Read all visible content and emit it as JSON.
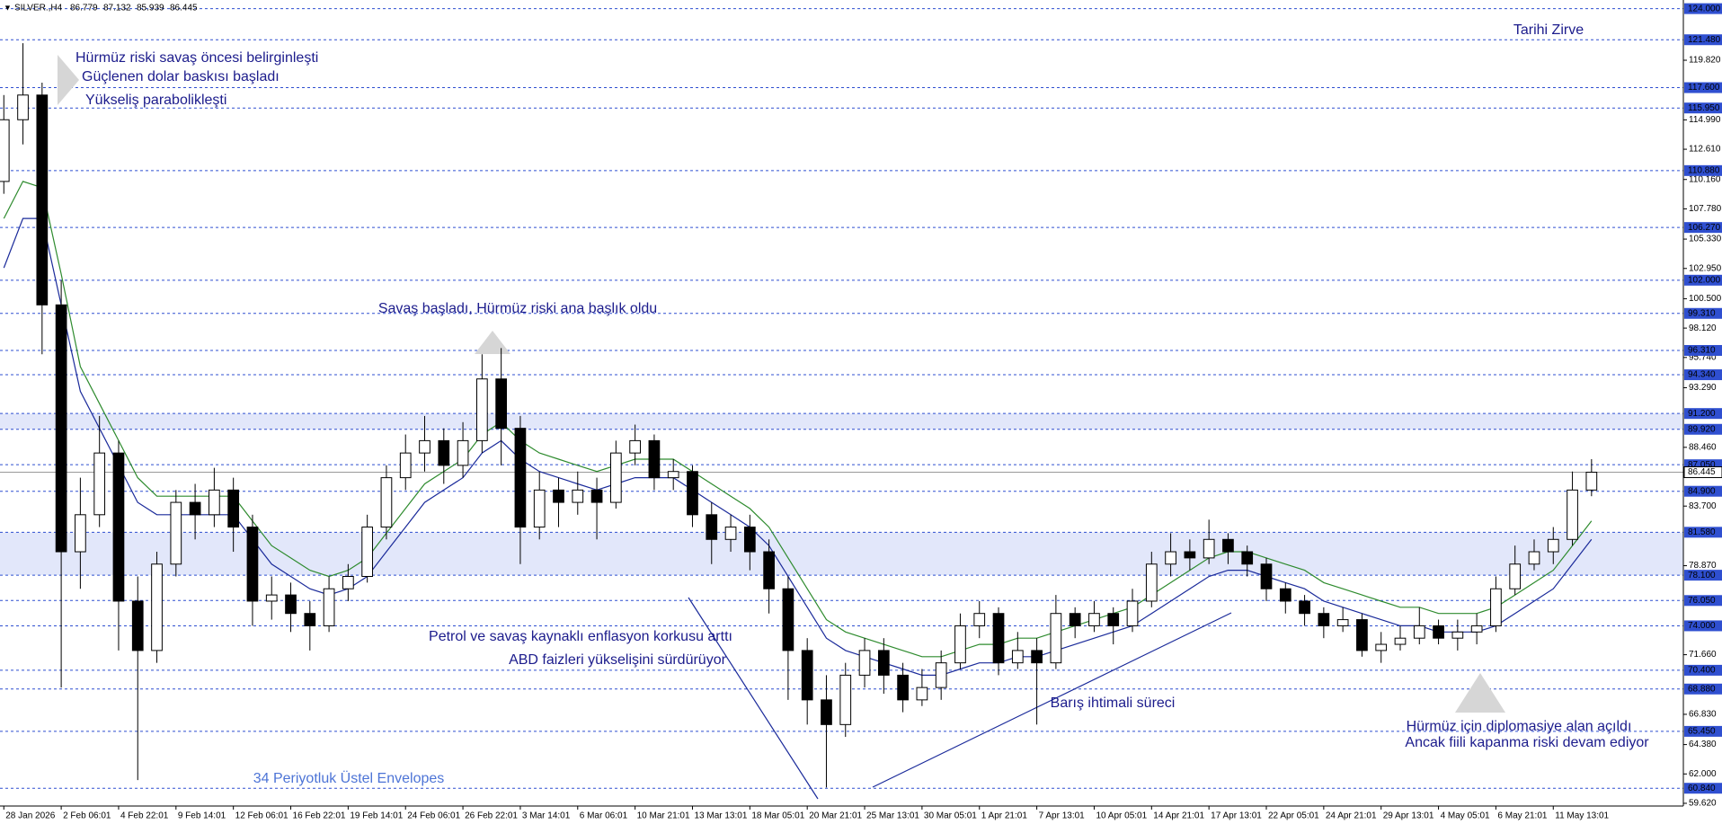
{
  "chart_data": {
    "type": "candlestick",
    "symbol": "SILVER.,H4",
    "header_values": [
      86.779,
      87.132,
      85.939,
      86.445
    ],
    "open": [
      110,
      115,
      117,
      100,
      80,
      83,
      88,
      76,
      72,
      79,
      84,
      83,
      85,
      82,
      76,
      76.5,
      75,
      74,
      77,
      78,
      82,
      86,
      88,
      89,
      87,
      89,
      94,
      90,
      82,
      85,
      84,
      85,
      84,
      88,
      89,
      86,
      86.5,
      83,
      81,
      82,
      80,
      77,
      72,
      68,
      66,
      70,
      72,
      70,
      68,
      69,
      71,
      74,
      75,
      71,
      72,
      71,
      75,
      74,
      75,
      74,
      76,
      79,
      80,
      79.5,
      81,
      80,
      79,
      77,
      76,
      75,
      74,
      74.5,
      72,
      72.5,
      73,
      74,
      73,
      73.5,
      74,
      77,
      79,
      80,
      81,
      85
    ],
    "high": [
      117,
      121.2,
      118,
      102,
      86,
      91,
      89,
      78,
      80,
      85,
      85.5,
      86.8,
      86,
      83,
      78,
      77.5,
      76,
      78,
      79,
      83,
      87,
      89.5,
      91,
      90,
      90.5,
      96,
      96.5,
      91,
      86.5,
      86,
      86.5,
      86,
      89,
      90.3,
      89.5,
      87.5,
      87,
      84,
      83,
      83,
      81,
      78,
      73,
      70,
      71,
      73,
      73,
      71,
      70.5,
      72,
      75,
      76,
      75.5,
      73.5,
      73,
      76.5,
      75.5,
      76,
      75.5,
      77,
      80,
      81.5,
      81,
      82.6,
      81.5,
      80.5,
      79.5,
      77.5,
      76.5,
      75.5,
      75.5,
      75,
      73.5,
      74,
      75.5,
      74.5,
      74.5,
      75,
      78,
      80.5,
      81,
      82,
      86.5,
      87.5
    ],
    "low": [
      109,
      113,
      96,
      69,
      77,
      82,
      72,
      61.5,
      71,
      78,
      81,
      82,
      80,
      74,
      74.5,
      73.5,
      72,
      73.5,
      76,
      77.5,
      81,
      85,
      86.5,
      85.5,
      86,
      88,
      87,
      79,
      81,
      82,
      83,
      81,
      83.5,
      87,
      85,
      85,
      82,
      79,
      80,
      78.5,
      75,
      68,
      66,
      60.9,
      65,
      69,
      68.5,
      67,
      67.5,
      68,
      70.5,
      73,
      70,
      70.5,
      66,
      70.5,
      73,
      73.5,
      72.5,
      73.5,
      75.5,
      78,
      78.5,
      79,
      79,
      78,
      76,
      75,
      74,
      73,
      73.5,
      71.5,
      71,
      72,
      72.5,
      72.5,
      72,
      72.5,
      73.5,
      76.5,
      78.5,
      79,
      80.5,
      84.5
    ],
    "close": [
      115,
      117,
      100,
      80,
      83,
      88,
      76,
      72,
      79,
      84,
      83,
      85,
      82,
      76,
      76.5,
      75,
      74,
      77,
      78,
      82,
      86,
      88,
      89,
      87,
      89,
      94,
      90,
      82,
      85,
      84,
      85,
      84,
      88,
      89,
      86,
      86.5,
      83,
      81,
      82,
      80,
      77,
      72,
      68,
      66,
      70,
      72,
      70,
      68,
      69,
      71,
      74,
      75,
      71,
      72,
      71,
      75,
      74,
      75,
      74,
      76,
      79,
      80,
      79.5,
      81,
      80,
      79,
      77,
      76,
      75,
      74,
      74.5,
      72,
      72.5,
      73,
      74,
      73,
      73.5,
      74,
      77,
      79,
      80,
      81,
      85,
      86.445
    ],
    "envelopes": [
      {
        "color": "#2e8b2e",
        "values": [
          107,
          110,
          109.5,
          102.5,
          95,
          92,
          89,
          86,
          84.5,
          84.5,
          84.5,
          84.5,
          84.5,
          82.5,
          80.5,
          79.5,
          78.5,
          78,
          78.5,
          79.5,
          81.5,
          83.5,
          85.5,
          86.5,
          87.5,
          89.5,
          90.5,
          89,
          88,
          87.5,
          87,
          86.5,
          87,
          87.5,
          87.5,
          87.5,
          86.5,
          85.5,
          84.5,
          83.5,
          82,
          79.5,
          77,
          74.5,
          73.5,
          73,
          72.5,
          72,
          71.5,
          71.5,
          72,
          72.5,
          72.5,
          73,
          73,
          73.5,
          74,
          74.5,
          75,
          75.5,
          76.5,
          77.5,
          78.5,
          79.5,
          80,
          80,
          79.5,
          79,
          78.5,
          77.5,
          77,
          76.5,
          76,
          75.5,
          75.5,
          75,
          75,
          75,
          75.5,
          76.5,
          77.5,
          78.5,
          80.5,
          82.5
        ]
      },
      {
        "color": "#1a2a9a",
        "values": [
          103,
          107,
          107,
          100,
          93,
          90,
          87,
          84,
          83,
          83,
          83,
          83,
          83,
          81,
          79,
          78,
          77,
          76.5,
          77,
          78,
          80,
          82,
          84,
          85,
          86,
          88,
          89,
          87.5,
          86.5,
          86,
          85.5,
          85,
          85.5,
          86,
          86,
          86,
          85,
          84,
          83,
          82,
          80.5,
          78,
          75.5,
          73,
          72,
          71.5,
          71,
          70.5,
          70,
          70,
          70.5,
          71,
          71,
          71.5,
          71.5,
          72,
          72.5,
          73,
          73.5,
          74,
          75,
          76,
          77,
          78,
          78.5,
          78.5,
          78,
          77.5,
          77,
          76,
          75.5,
          75,
          74.5,
          74,
          74,
          73.5,
          73.5,
          73.5,
          74,
          75,
          76,
          77,
          79,
          81
        ]
      }
    ],
    "xlim": [
      -0.2,
      87.8
    ],
    "xticks": [
      {
        "value": 0,
        "label": "28 Jan 2026"
      },
      {
        "value": 3,
        "label": "2 Feb 06:01"
      },
      {
        "value": 6,
        "label": "4 Feb 22:01"
      },
      {
        "value": 9,
        "label": "9 Feb 14:01"
      },
      {
        "value": 12,
        "label": "12 Feb 06:01"
      },
      {
        "value": 15,
        "label": "16 Feb 22:01"
      },
      {
        "value": 18,
        "label": "19 Feb 14:01"
      },
      {
        "value": 21,
        "label": "24 Feb 06:01"
      },
      {
        "value": 24,
        "label": "26 Feb 22:01"
      },
      {
        "value": 27,
        "label": "3 Mar 14:01"
      },
      {
        "value": 30,
        "label": "6 Mar 06:01"
      },
      {
        "value": 33,
        "label": "10 Mar 21:01"
      },
      {
        "value": 36,
        "label": "13 Mar 13:01"
      },
      {
        "value": 39,
        "label": "18 Mar 05:01"
      },
      {
        "value": 42,
        "label": "20 Mar 21:01"
      },
      {
        "value": 45,
        "label": "25 Mar 13:01"
      },
      {
        "value": 48,
        "label": "30 Mar 05:01"
      },
      {
        "value": 51,
        "label": "1 Apr 21:01"
      },
      {
        "value": 54,
        "label": "7 Apr 13:01"
      },
      {
        "value": 57,
        "label": "10 Apr 05:01"
      },
      {
        "value": 60,
        "label": "14 Apr 21:01"
      },
      {
        "value": 63,
        "label": "17 Apr 13:01"
      },
      {
        "value": 66,
        "label": "22 Apr 05:01"
      },
      {
        "value": 69,
        "label": "24 Apr 21:01"
      },
      {
        "value": 72,
        "label": "29 Apr 13:01"
      },
      {
        "value": 75,
        "label": "4 May 05:01"
      },
      {
        "value": 78,
        "label": "6 May 21:01"
      },
      {
        "value": 81,
        "label": "11 May 13:01"
      }
    ],
    "ylim": [
      59.4,
      124.7
    ],
    "yticks": [
      {
        "value": 59.62,
        "label": "59.620"
      },
      {
        "value": 62,
        "label": "62.000"
      },
      {
        "value": 64.38,
        "label": "64.380"
      },
      {
        "value": 66.83,
        "label": "66.830"
      },
      {
        "value": 71.66,
        "label": "71.660"
      },
      {
        "value": 78.87,
        "label": "78.870"
      },
      {
        "value": 83.7,
        "label": "83.700"
      },
      {
        "value": 88.46,
        "label": "88.460"
      },
      {
        "value": 93.29,
        "label": "93.290"
      },
      {
        "value": 95.74,
        "label": "95.740"
      },
      {
        "value": 98.12,
        "label": "98.120"
      },
      {
        "value": 100.5,
        "label": "100.500"
      },
      {
        "value": 102.95,
        "label": "102.950"
      },
      {
        "value": 105.33,
        "label": "105.330"
      },
      {
        "value": 107.78,
        "label": "107.780"
      },
      {
        "value": 110.16,
        "label": "110.160"
      },
      {
        "value": 112.61,
        "label": "112.610"
      },
      {
        "value": 114.99,
        "label": "114.990"
      },
      {
        "value": 119.82,
        "label": "119.820"
      }
    ],
    "levels": [
      {
        "value": 124,
        "label": "124.000"
      },
      {
        "value": 121.48,
        "label": "121.480"
      },
      {
        "value": 117.6,
        "label": "117.600"
      },
      {
        "value": 115.95,
        "label": "115.950"
      },
      {
        "value": 110.88,
        "label": "110.880"
      },
      {
        "value": 106.27,
        "label": "106.270"
      },
      {
        "value": 102,
        "label": "102.000"
      },
      {
        "value": 99.31,
        "label": "99.310"
      },
      {
        "value": 96.31,
        "label": "96.310"
      },
      {
        "value": 94.34,
        "label": "94.340"
      },
      {
        "value": 91.2,
        "label": "91.200"
      },
      {
        "value": 89.92,
        "label": "89.920"
      },
      {
        "value": 87.05,
        "label": "87.050"
      },
      {
        "value": 84.9,
        "label": "84.900"
      },
      {
        "value": 81.58,
        "label": "81.580"
      },
      {
        "value": 78.1,
        "label": "78.100"
      },
      {
        "value": 76.05,
        "label": "76.050"
      },
      {
        "value": 74,
        "label": "74.000"
      },
      {
        "value": 70.4,
        "label": "70.400"
      },
      {
        "value": 68.88,
        "label": "68.880"
      },
      {
        "value": 65.45,
        "label": "65.450"
      },
      {
        "value": 60.84,
        "label": "60.840"
      }
    ],
    "level_color": "#2f4fd0",
    "zones": [
      [
        89.92,
        91.2
      ],
      [
        78.1,
        81.58
      ]
    ],
    "zone_color": "#e2e7fa",
    "current_price": 86.445,
    "annotations": [
      {
        "text": "Tarihi Zirve",
        "color": "#1c1c8c"
      },
      {
        "text": "Hürmüz riski savaş öncesi belirginleşti",
        "color": "#1c1c8c"
      },
      {
        "text": "Güçlenen dolar baskısı başladı",
        "color": "#1c1c8c"
      },
      {
        "text": "Yükseliş parabolikleşti",
        "color": "#1c1c8c"
      },
      {
        "text": "Savaş başladı, Hürmüz riski ana başlık oldu",
        "color": "#1c1c8c"
      },
      {
        "text": "Petrol ve savaş kaynaklı enflasyon korkusu arttı",
        "color": "#1c1c8c"
      },
      {
        "text": "ABD faizleri yükselişini sürdürüyor",
        "color": "#1c1c8c"
      },
      {
        "text": "Barış ihtimali süreci",
        "color": "#1c1c8c"
      },
      {
        "text": "Hürmüz için diplomasiye alan açıldı",
        "color": "#1c1c8c"
      },
      {
        "text": "Ancak fiili kapanma riski devam ediyor",
        "color": "#1c1c8c"
      },
      {
        "text": "34 Periyotluk Üstel Envelopes",
        "color": "#4d74d6"
      }
    ]
  }
}
